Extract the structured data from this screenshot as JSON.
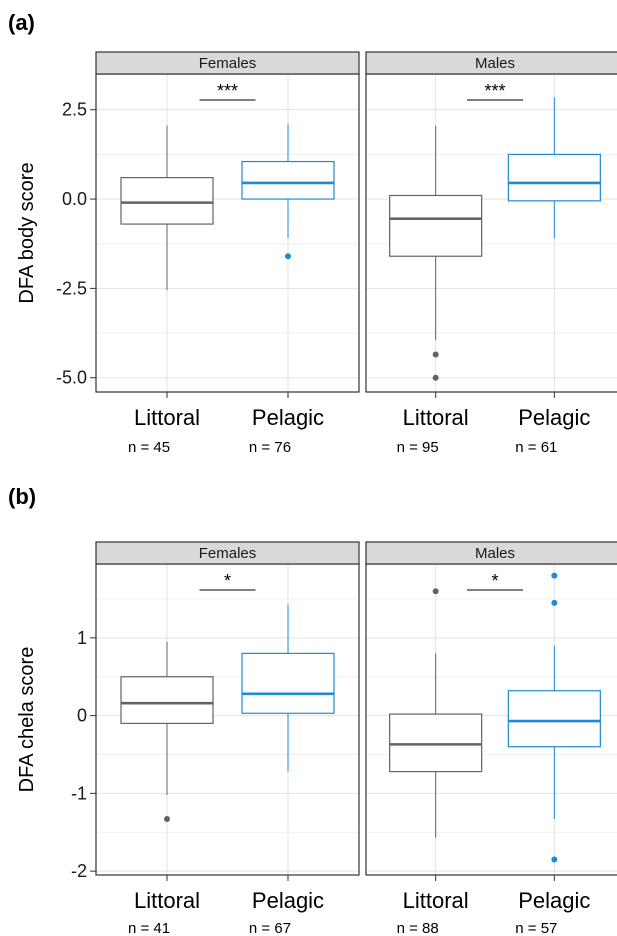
{
  "chart_data": [
    {
      "type": "box",
      "panel_label": "(a)",
      "ylabel": "DFA body score",
      "ylim": [
        -5.4,
        3.5
      ],
      "yticks": [
        2.5,
        0.0,
        -2.5,
        -5.0
      ],
      "ytick_labels": [
        "2.5",
        "0.0",
        "-2.5",
        "-5.0"
      ],
      "grid": true,
      "facets": [
        {
          "strip": "Females",
          "significance": "***",
          "groups": [
            {
              "category": "Littoral",
              "n_label": "n = 45",
              "color": "#636363",
              "whisker_low": -2.55,
              "q1": -0.7,
              "median": -0.1,
              "q3": 0.6,
              "whisker_high": 2.05,
              "outliers": []
            },
            {
              "category": "Pelagic",
              "n_label": "n = 76",
              "color": "#1f8ad6",
              "whisker_low": -1.1,
              "q1": 0.0,
              "median": 0.45,
              "q3": 1.05,
              "whisker_high": 2.1,
              "outliers": [
                -1.6
              ]
            }
          ]
        },
        {
          "strip": "Males",
          "significance": "***",
          "groups": [
            {
              "category": "Littoral",
              "n_label": "n = 95",
              "color": "#636363",
              "whisker_low": -3.95,
              "q1": -1.6,
              "median": -0.55,
              "q3": 0.1,
              "whisker_high": 2.05,
              "outliers": [
                -4.35,
                -5.0
              ]
            },
            {
              "category": "Pelagic",
              "n_label": "n = 61",
              "color": "#1f8ad6",
              "whisker_low": -1.1,
              "q1": -0.05,
              "median": 0.45,
              "q3": 1.25,
              "whisker_high": 2.85,
              "outliers": []
            }
          ]
        }
      ]
    },
    {
      "type": "box",
      "panel_label": "(b)",
      "ylabel": "DFA chela score",
      "ylim": [
        -2.05,
        1.95
      ],
      "yticks": [
        1,
        0,
        -1,
        -2
      ],
      "ytick_labels": [
        "1",
        "0",
        "-1",
        "-2"
      ],
      "grid": true,
      "facets": [
        {
          "strip": "Females",
          "significance": "*",
          "groups": [
            {
              "category": "Littoral",
              "n_label": "n = 41",
              "color": "#636363",
              "whisker_low": -1.02,
              "q1": -0.1,
              "median": 0.16,
              "q3": 0.5,
              "whisker_high": 0.95,
              "outliers": [
                -1.33
              ]
            },
            {
              "category": "Pelagic",
              "n_label": "n = 67",
              "color": "#1f8ad6",
              "whisker_low": -0.72,
              "q1": 0.03,
              "median": 0.28,
              "q3": 0.8,
              "whisker_high": 1.43,
              "outliers": []
            }
          ]
        },
        {
          "strip": "Males",
          "significance": "*",
          "groups": [
            {
              "category": "Littoral",
              "n_label": "n = 88",
              "color": "#636363",
              "whisker_low": -1.57,
              "q1": -0.72,
              "median": -0.37,
              "q3": 0.02,
              "whisker_high": 0.8,
              "outliers": [
                1.6
              ]
            },
            {
              "category": "Pelagic",
              "n_label": "n = 57",
              "color": "#1f8ad6",
              "whisker_low": -1.33,
              "q1": -0.4,
              "median": -0.07,
              "q3": 0.32,
              "whisker_high": 0.9,
              "outliers": [
                1.8,
                1.45,
                -1.85
              ]
            }
          ]
        }
      ]
    }
  ]
}
